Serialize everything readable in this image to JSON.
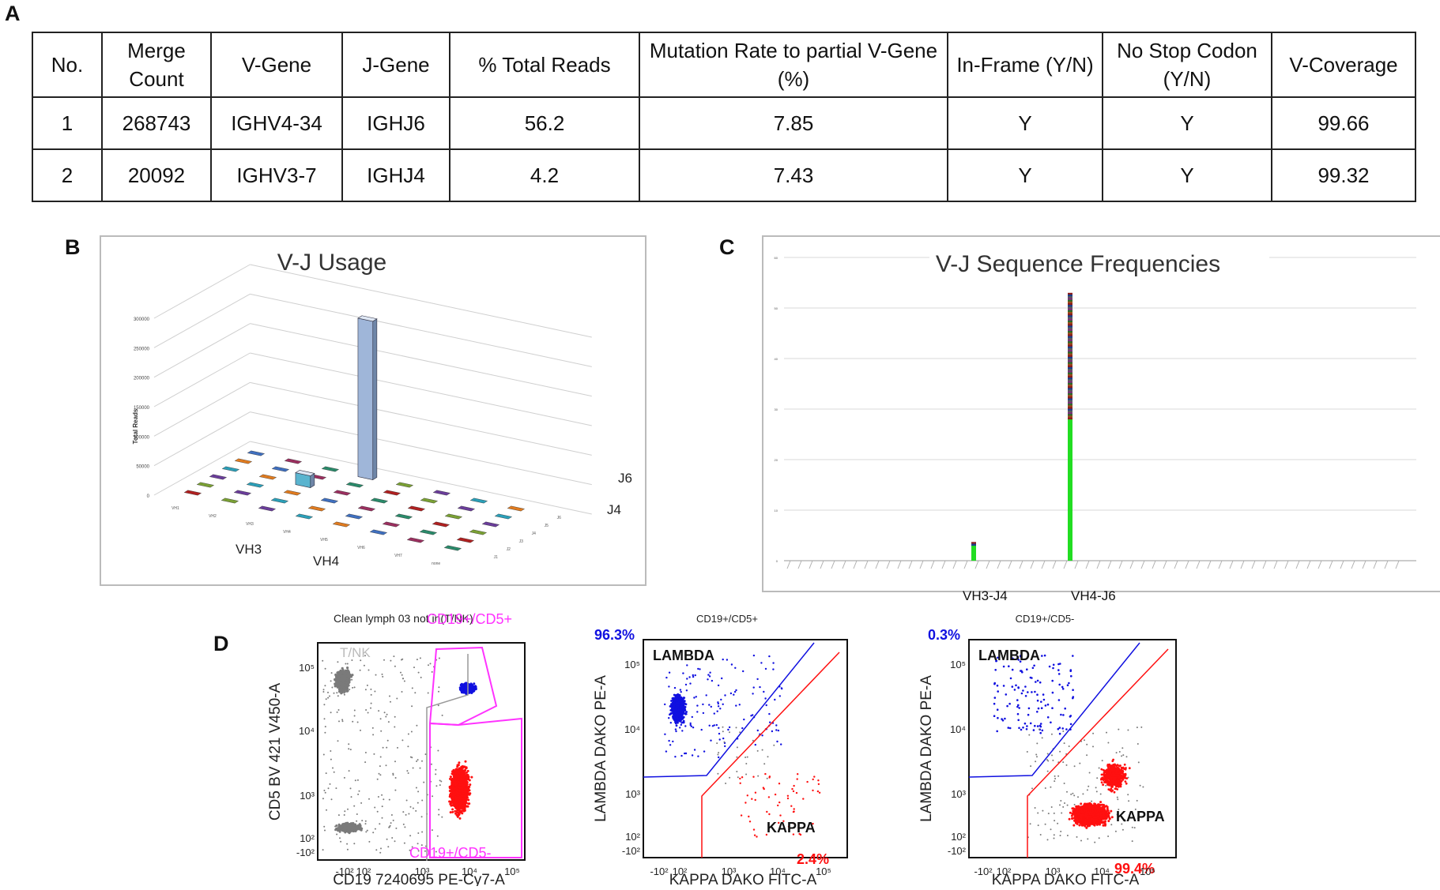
{
  "panel_labels": {
    "a": "A",
    "b": "B",
    "c": "C",
    "d": "D"
  },
  "table": {
    "headers": [
      "No.",
      "Merge Count",
      "V-Gene",
      "J-Gene",
      "% Total Reads",
      "Mutation Rate to partial V-Gene (%)",
      "In-Frame (Y/N)",
      "No Stop Codon (Y/N)",
      "V-Coverage"
    ],
    "rows": [
      [
        "1",
        "268743",
        "IGHV4-34",
        "IGHJ6",
        "56.2",
        "7.85",
        "Y",
        "Y",
        "99.66"
      ],
      [
        "2",
        "20092",
        "IGHV3-7",
        "IGHJ4",
        "4.2",
        "7.43",
        "Y",
        "Y",
        "99.32"
      ]
    ]
  },
  "chart_data": [
    {
      "type": "bar",
      "id": "vj-usage-3d",
      "title": "V-J Usage",
      "ylabel": "Total Reads",
      "ylim": [
        0,
        300000
      ],
      "yticks": [
        "0",
        "50000",
        "100000",
        "150000",
        "200000",
        "250000",
        "300000"
      ],
      "x_categories": [
        "VH1",
        "VH2",
        "VH3",
        "VH4",
        "VH5",
        "VH6",
        "VH7",
        "none"
      ],
      "depth_categories": [
        "J1",
        "J2",
        "J3",
        "J4",
        "J5",
        "J6"
      ],
      "x_labels_large": [
        "VH3",
        "VH4"
      ],
      "depth_labels_large": [
        "J6",
        "J4"
      ],
      "highlighted": [
        {
          "v": "VH3",
          "j": "J4",
          "value": 20092
        },
        {
          "v": "VH4",
          "j": "J6",
          "value": 268743
        }
      ]
    },
    {
      "type": "bar",
      "id": "vj-sequence-frequencies",
      "title": "V-J Sequence Frequencies",
      "ylim": [
        0,
        60
      ],
      "yticks": [
        "0",
        "10",
        "20",
        "30",
        "40",
        "50",
        "60"
      ],
      "category_labels": [
        "VH3-J4",
        "VH4-J6"
      ],
      "series": [
        {
          "name": "VH3-J4",
          "values": [
            3.7
          ],
          "dominant": 3.0
        },
        {
          "name": "VH4-J6",
          "values": [
            53
          ],
          "dominant": 28
        }
      ]
    }
  ],
  "flow": {
    "p1": {
      "title": "Clean lymph 03 not in(T/NK)",
      "gate_top": "CD19+/CD5+",
      "gate_bottom": "CD19+/CD5-",
      "tnk": "T/NK",
      "ylabel": "CD5 BV 421 V450-A",
      "xlabel": "CD19 7240695 PE-Cy7-A"
    },
    "p2": {
      "title": "CD19+/CD5+",
      "lambda": "LAMBDA",
      "kappa": "KAPPA",
      "lambda_pct": "96.3%",
      "kappa_pct": "2.4%",
      "ylabel": "LAMBDA DAKO PE-A",
      "xlabel": "KAPPA DAKO FITC-A"
    },
    "p3": {
      "title": "CD19+/CD5-",
      "lambda": "LAMBDA",
      "kappa": "KAPPA",
      "lambda_pct": "0.3%",
      "kappa_pct": "99.4%",
      "ylabel": "LAMBDA DAKO PE-A",
      "xlabel": "KAPPA DAKO FITC-A"
    },
    "tick_labels": {
      "y": [
        "10⁵",
        "10⁴",
        "10³",
        "10²",
        "-10²"
      ],
      "x": [
        "-10²",
        "10²",
        "10³",
        "10⁴",
        "10⁵"
      ]
    },
    "colors": {
      "blue": "#1010e0",
      "red": "#ff1010",
      "gray": "#7a7a7a",
      "magenta": "#ff33ff"
    }
  }
}
